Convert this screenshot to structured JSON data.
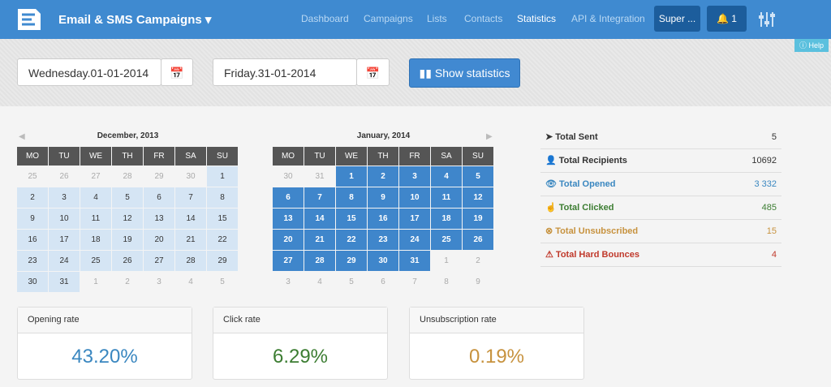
{
  "nav": {
    "brand": "Email & SMS Campaigns",
    "links": [
      "Dashboard",
      "Campaigns",
      "Lists",
      "Contacts",
      "Statistics",
      "API & Integration"
    ],
    "user": "Super ...",
    "notifications": "1"
  },
  "help": "Help",
  "filters": {
    "start_date": "Wednesday.01-01-2014",
    "end_date": "Friday.31-01-2014",
    "button": "Show statistics"
  },
  "calendars": [
    {
      "title": "December, 2013",
      "weekdays": [
        "MO",
        "TU",
        "WE",
        "TH",
        "FR",
        "SA",
        "SU"
      ],
      "weeks": [
        [
          "25",
          "26",
          "27",
          "28",
          "29",
          "30",
          "1"
        ],
        [
          "2",
          "3",
          "4",
          "5",
          "6",
          "7",
          "8"
        ],
        [
          "9",
          "10",
          "11",
          "12",
          "13",
          "14",
          "15"
        ],
        [
          "16",
          "17",
          "18",
          "19",
          "20",
          "21",
          "22"
        ],
        [
          "23",
          "24",
          "25",
          "26",
          "27",
          "28",
          "29"
        ],
        [
          "30",
          "31",
          "1",
          "2",
          "3",
          "4",
          "5"
        ]
      ]
    },
    {
      "title": "January, 2014",
      "weekdays": [
        "MO",
        "TU",
        "WE",
        "TH",
        "FR",
        "SA",
        "SU"
      ],
      "weeks": [
        [
          "30",
          "31",
          "1",
          "2",
          "3",
          "4",
          "5"
        ],
        [
          "6",
          "7",
          "8",
          "9",
          "10",
          "11",
          "12"
        ],
        [
          "13",
          "14",
          "15",
          "16",
          "17",
          "18",
          "19"
        ],
        [
          "20",
          "21",
          "22",
          "23",
          "24",
          "25",
          "26"
        ],
        [
          "27",
          "28",
          "29",
          "30",
          "31",
          "1",
          "2"
        ],
        [
          "3",
          "4",
          "5",
          "6",
          "7",
          "8",
          "9"
        ]
      ]
    }
  ],
  "totals": [
    {
      "label": "Total Sent",
      "value": "5"
    },
    {
      "label": "Total Recipients",
      "value": "10692"
    },
    {
      "label": "Total Opened",
      "value": "3 332"
    },
    {
      "label": "Total Clicked",
      "value": "485"
    },
    {
      "label": "Total Unsubscribed",
      "value": "15"
    },
    {
      "label": "Total Hard Bounces",
      "value": "4"
    }
  ],
  "rates": [
    {
      "label": "Opening rate",
      "value": "43.20%"
    },
    {
      "label": "Click rate",
      "value": "6.29%"
    },
    {
      "label": "Unsubscription rate",
      "value": "0.19%"
    }
  ]
}
